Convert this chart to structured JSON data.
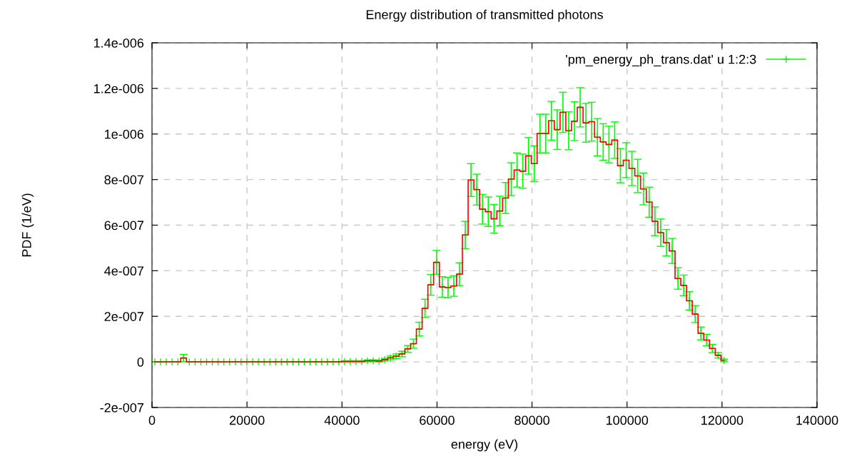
{
  "chart_data": {
    "type": "step",
    "title": "Energy distribution of transmitted photons",
    "xlabel": "energy (eV)",
    "ylabel": "PDF (1/eV)",
    "x": [
      605,
      1815,
      3025,
      4235,
      5445,
      6655,
      7865,
      9075,
      10285,
      11495,
      12705,
      13915,
      15125,
      16335,
      17545,
      18755,
      19965,
      21175,
      22385,
      23595,
      24805,
      26015,
      27225,
      28435,
      29645,
      30855,
      32065,
      33275,
      34485,
      35695,
      36905,
      38115,
      39325,
      40535,
      41745,
      42955,
      44165,
      45375,
      46585,
      47795,
      49005,
      50215,
      51425,
      52635,
      53845,
      55055,
      56265,
      57475,
      58685,
      59895,
      61105,
      62315,
      63525,
      64735,
      65945,
      67155,
      68365,
      69575,
      70785,
      71995,
      73205,
      74415,
      75625,
      76835,
      78045,
      79255,
      80465,
      81675,
      82885,
      84095,
      85305,
      86515,
      87725,
      88935,
      90145,
      91355,
      92565,
      93775,
      94985,
      96195,
      97405,
      98615,
      99825,
      101035,
      102245,
      103455,
      104665,
      105875,
      107085,
      108295,
      109505,
      110715,
      111925,
      113135,
      114345,
      115555,
      116765,
      117975,
      119185,
      120395
    ],
    "series": [
      {
        "color": "#ff0000",
        "values": [
          0,
          0,
          0,
          0,
          0,
          1.7e-08,
          0,
          0,
          0,
          0,
          0,
          0,
          0,
          0,
          0,
          0,
          0,
          0,
          0,
          0,
          0,
          0,
          0,
          0,
          0,
          0,
          0,
          0,
          0,
          0,
          0,
          0,
          0,
          2e-09,
          2e-09,
          2e-09,
          2e-09,
          5e-09,
          5e-09,
          4e-09,
          1e-08,
          1.8e-08,
          2.5e-08,
          3.5e-08,
          5.7e-08,
          8e-08,
          1.44e-07,
          2.35e-07,
          3.38e-07,
          4.37e-07,
          3.29e-07,
          3.26e-07,
          3.33e-07,
          3.85e-07,
          5.57e-07,
          7.98e-07,
          7.56e-07,
          6.7e-07,
          6.59e-07,
          6.28e-07,
          6.62e-07,
          7.19e-07,
          8.02e-07,
          8.42e-07,
          8.37e-07,
          9.04e-07,
          8.7e-07,
          1.002e-06,
          1.002e-06,
          1.058e-06,
          1.019e-06,
          1.095e-06,
          1.014e-06,
          1.056e-06,
          1.117e-06,
          1.049e-06,
          1.054e-06,
          9.86e-07,
          9.65e-07,
          9.54e-07,
          9.73e-07,
          8.61e-07,
          8.85e-07,
          8.49e-07,
          8.16e-07,
          7.59e-07,
          7.01e-07,
          6.17e-07,
          5.67e-07,
          5.23e-07,
          4.87e-07,
          3.66e-07,
          3.36e-07,
          2.68e-07,
          2.1e-07,
          1.25e-07,
          9.6e-08,
          5.9e-08,
          2.9e-08,
          6e-09
        ]
      },
      {
        "type": "scatter",
        "name": "'pm_energy_ph_trans.dat' u 1:2:3",
        "color": "#00ff00",
        "marker": "cross",
        "values": [
          0,
          0,
          0,
          0,
          0,
          1.7e-08,
          0,
          0,
          0,
          0,
          0,
          0,
          0,
          0,
          0,
          0,
          0,
          0,
          0,
          0,
          0,
          0,
          0,
          0,
          0,
          0,
          0,
          0,
          0,
          0,
          0,
          0,
          0,
          2e-09,
          2e-09,
          2e-09,
          2e-09,
          5e-09,
          5e-09,
          4e-09,
          1e-08,
          1.8e-08,
          2.5e-08,
          3.5e-08,
          5.7e-08,
          8e-08,
          1.44e-07,
          2.35e-07,
          3.38e-07,
          4.37e-07,
          3.29e-07,
          3.26e-07,
          3.33e-07,
          3.85e-07,
          5.57e-07,
          7.98e-07,
          7.56e-07,
          6.7e-07,
          6.59e-07,
          6.28e-07,
          6.62e-07,
          7.19e-07,
          8.02e-07,
          8.42e-07,
          8.37e-07,
          9.04e-07,
          8.7e-07,
          1.002e-06,
          1.002e-06,
          1.058e-06,
          1.019e-06,
          1.095e-06,
          1.014e-06,
          1.056e-06,
          1.117e-06,
          1.049e-06,
          1.054e-06,
          9.86e-07,
          9.65e-07,
          9.54e-07,
          9.73e-07,
          8.61e-07,
          8.85e-07,
          8.49e-07,
          8.16e-07,
          7.59e-07,
          7.01e-07,
          6.17e-07,
          5.67e-07,
          5.23e-07,
          4.87e-07,
          3.66e-07,
          3.36e-07,
          2.68e-07,
          2.1e-07,
          1.25e-07,
          9.6e-08,
          5.9e-08,
          2.9e-08,
          6e-09
        ],
        "errors": [
          0,
          0,
          0,
          0,
          0,
          1.6e-08,
          0,
          0,
          0,
          0,
          0,
          0,
          0,
          0,
          0,
          0,
          0,
          0,
          0,
          0,
          0,
          0,
          0,
          0,
          0,
          0,
          0,
          0,
          0,
          0,
          0,
          0,
          0,
          3e-09,
          3e-09,
          3e-09,
          3e-09,
          4e-09,
          4e-09,
          4e-09,
          6e-09,
          8e-09,
          1e-08,
          1.2e-08,
          1.5e-08,
          2e-08,
          3e-08,
          4e-08,
          4.5e-08,
          5.2e-08,
          4.5e-08,
          4.5e-08,
          4.5e-08,
          5e-08,
          6e-08,
          7.2e-08,
          6.8e-08,
          6.5e-08,
          6.5e-08,
          6.3e-08,
          6.5e-08,
          6.8e-08,
          7.2e-08,
          7.5e-08,
          7.5e-08,
          8e-08,
          7.8e-08,
          8.5e-08,
          8.5e-08,
          8.5e-08,
          8.7e-08,
          8.8e-08,
          8.3e-08,
          8.5e-08,
          8.6e-08,
          8.5e-08,
          8.5e-08,
          8.2e-08,
          8e-08,
          8e-08,
          8e-08,
          7.5e-08,
          7.7e-08,
          7.5e-08,
          7.3e-08,
          7e-08,
          6.6e-08,
          6.3e-08,
          6e-08,
          5.8e-08,
          5.5e-08,
          4.7e-08,
          4.5e-08,
          4e-08,
          3.7e-08,
          2.8e-08,
          2.5e-08,
          1.8e-08,
          1.2e-08,
          6e-09
        ]
      }
    ],
    "xlim": [
      0,
      140000
    ],
    "xticks": [
      0,
      20000,
      40000,
      60000,
      80000,
      100000,
      120000,
      140000
    ],
    "ylim": [
      -2e-07,
      1.4e-06
    ],
    "yticks": [
      {
        "value": -2e-07,
        "label": "-2e-007"
      },
      0,
      {
        "value": 2e-07,
        "label": "2e-007"
      },
      {
        "value": 4e-07,
        "label": "4e-007"
      },
      {
        "value": 6e-07,
        "label": "6e-007"
      },
      {
        "value": 8e-07,
        "label": "8e-007"
      },
      {
        "value": 1e-06,
        "label": "1e-006"
      },
      {
        "value": 1.2e-06,
        "label": "1.2e-006"
      },
      {
        "value": 1.4e-06,
        "label": "1.4e-006"
      }
    ],
    "grid": true,
    "legend": "top right"
  }
}
